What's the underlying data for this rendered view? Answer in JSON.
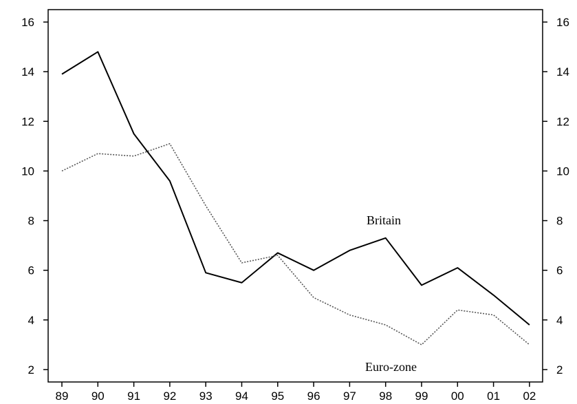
{
  "chart_data": {
    "type": "line",
    "title": "",
    "xlabel": "",
    "ylabel": "",
    "categories": [
      "89",
      "90",
      "91",
      "92",
      "93",
      "94",
      "95",
      "96",
      "97",
      "98",
      "99",
      "00",
      "01",
      "02"
    ],
    "ylim": [
      1.5,
      16.5
    ],
    "yticks": [
      2,
      4,
      6,
      8,
      10,
      12,
      14,
      16
    ],
    "grid": false,
    "right_axis": true,
    "series": [
      {
        "name": "Britain",
        "style": "solid",
        "color": "#000000",
        "values": [
          13.9,
          14.8,
          11.5,
          9.6,
          5.9,
          5.5,
          6.7,
          6.0,
          6.8,
          7.3,
          5.4,
          6.1,
          5.0,
          3.8
        ]
      },
      {
        "name": "Euro-zone",
        "style": "dotted",
        "color": "#555555",
        "values": [
          10.0,
          10.7,
          10.6,
          11.1,
          8.6,
          6.3,
          6.6,
          4.9,
          4.2,
          3.8,
          3.0,
          4.4,
          4.2,
          3.0
        ]
      }
    ]
  }
}
